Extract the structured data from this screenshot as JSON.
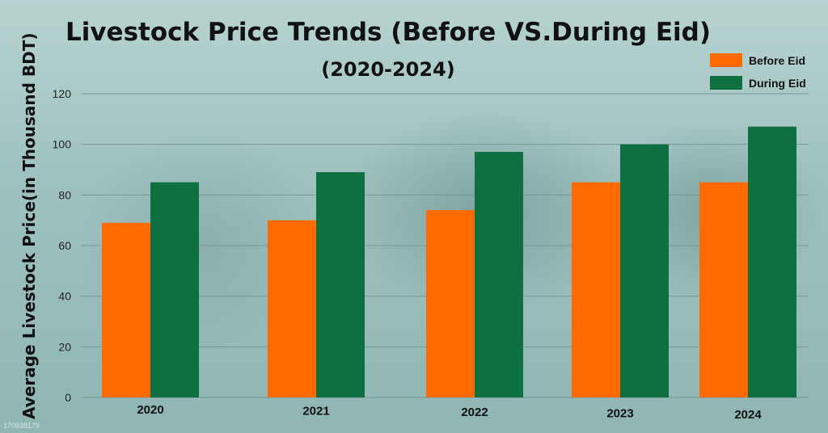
{
  "chart_data": {
    "type": "bar",
    "title": "Livestock Price Trends (Before VS.During Eid)",
    "subtitle": "(2020-2024)",
    "xlabel": "",
    "ylabel": "Average Livestock Price(in Thousand BDT)",
    "categories": [
      "2020",
      "2021",
      "2022",
      "2023",
      "2024"
    ],
    "series": [
      {
        "name": "Before Eid",
        "values": [
          69,
          70,
          74,
          85,
          85
        ],
        "color": "#ff6a00"
      },
      {
        "name": "During Eid",
        "values": [
          85,
          89,
          97,
          100,
          107
        ],
        "color": "#0e7040"
      }
    ],
    "ylim": [
      0,
      120
    ],
    "yticks": [
      "0",
      "20",
      "40",
      "60",
      "80",
      "100",
      "120"
    ],
    "grid": true,
    "legend_position": "top-right"
  },
  "watermark": "170938179"
}
